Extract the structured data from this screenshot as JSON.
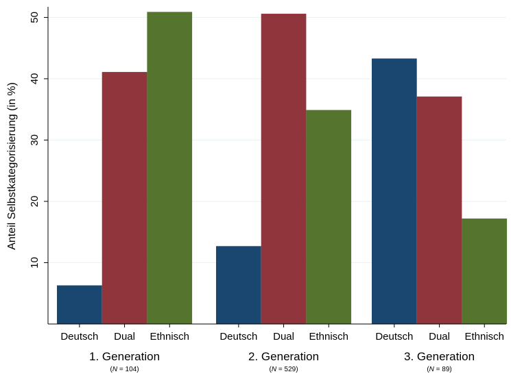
{
  "chart_data": {
    "type": "bar",
    "ylabel": "Anteil Selbstkategorisierung (in %)",
    "ylim": [
      0,
      51.5
    ],
    "yticks": [
      10,
      20,
      30,
      40,
      50
    ],
    "grid": true,
    "colors": {
      "Deutsch": "#1a476f",
      "Dual": "#90353b",
      "Ethnisch": "#55752f"
    },
    "groups": [
      {
        "label": "1. Generation",
        "n_label": {
          "var": "N",
          "rest": " = 104"
        },
        "bars": [
          {
            "category": "Deutsch",
            "value": 6.3
          },
          {
            "category": "Dual",
            "value": 41.1
          },
          {
            "category": "Ethnisch",
            "value": 50.9
          }
        ]
      },
      {
        "label": "2. Generation",
        "n_label": {
          "var": "N",
          "rest": " = 529"
        },
        "bars": [
          {
            "category": "Deutsch",
            "value": 12.7
          },
          {
            "category": "Dual",
            "value": 50.6
          },
          {
            "category": "Ethnisch",
            "value": 34.9
          }
        ]
      },
      {
        "label": "3. Generation",
        "n_label": {
          "var": "N",
          "rest": " = 89"
        },
        "bars": [
          {
            "category": "Deutsch",
            "value": 43.3
          },
          {
            "category": "Dual",
            "value": 37.1
          },
          {
            "category": "Ethnisch",
            "value": 17.2
          }
        ]
      }
    ]
  }
}
